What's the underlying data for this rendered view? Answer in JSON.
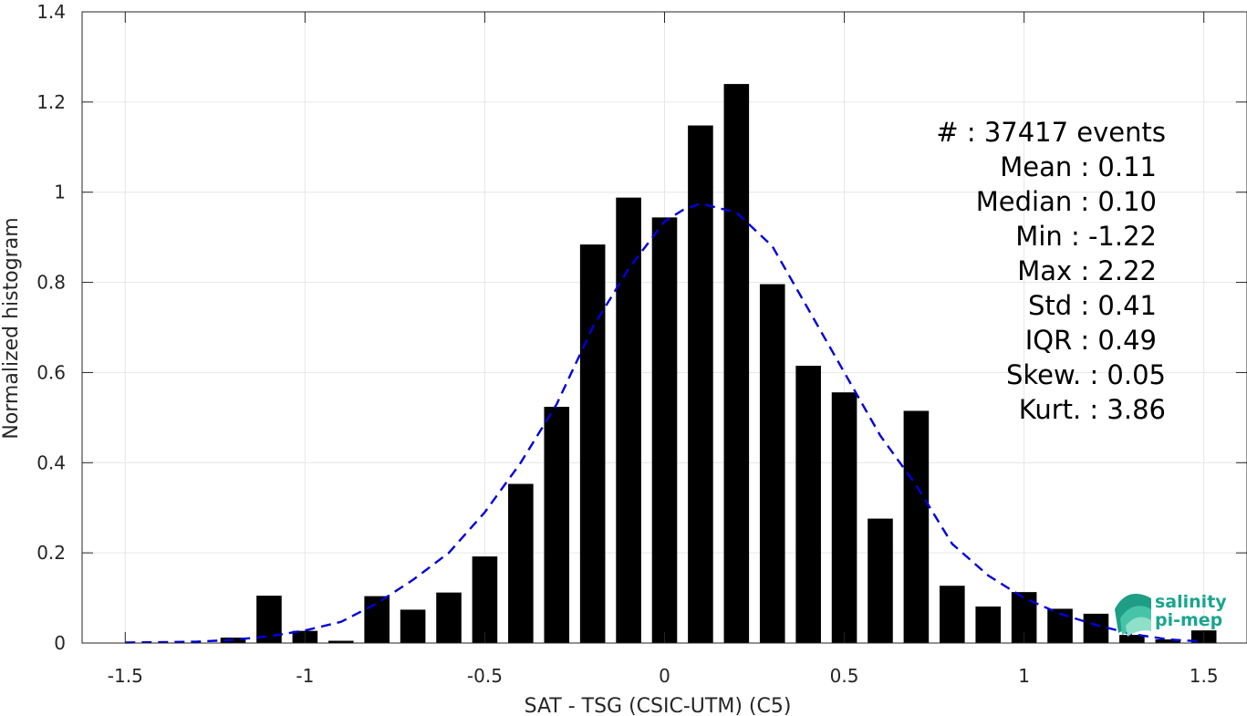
{
  "chart_data": {
    "type": "bar",
    "xlabel": "SAT - TSG (CSIC-UTM) (C5)",
    "ylabel": "Normalized histogram",
    "xlim": [
      -1.62,
      1.62
    ],
    "ylim": [
      0,
      1.4
    ],
    "xticks": [
      -1.5,
      -1,
      -0.5,
      0,
      0.5,
      1,
      1.5
    ],
    "xtick_labels": [
      "-1.5",
      "-1",
      "-0.5",
      "0",
      "0.5",
      "1",
      "1.5"
    ],
    "yticks": [
      0,
      0.2,
      0.4,
      0.6,
      0.8,
      1,
      1.2,
      1.4
    ],
    "ytick_labels": [
      "0",
      "0.2",
      "0.4",
      "0.6",
      "0.8",
      "1",
      "1.2",
      "1.4"
    ],
    "grid": true,
    "bar_color": "#000000",
    "bar_width": 0.07,
    "bars": {
      "x": [
        -1.2,
        -1.1,
        -1.0,
        -0.9,
        -0.8,
        -0.7,
        -0.6,
        -0.5,
        -0.4,
        -0.3,
        -0.2,
        -0.1,
        0.0,
        0.1,
        0.2,
        0.3,
        0.4,
        0.5,
        0.6,
        0.7,
        0.8,
        0.9,
        1.0,
        1.1,
        1.2,
        1.3,
        1.4,
        1.5
      ],
      "values": [
        0.012,
        0.105,
        0.027,
        0.005,
        0.104,
        0.074,
        0.112,
        0.192,
        0.353,
        0.524,
        0.884,
        0.988,
        0.944,
        1.148,
        1.24,
        0.796,
        0.615,
        0.556,
        0.276,
        0.515,
        0.127,
        0.081,
        0.113,
        0.076,
        0.065,
        0.018,
        0.008,
        0.028
      ]
    },
    "fit_curve": {
      "style": "dashed",
      "color": "#0000dd",
      "x": [
        -1.5,
        -1.3,
        -1.2,
        -1.1,
        -1.0,
        -0.9,
        -0.8,
        -0.7,
        -0.6,
        -0.5,
        -0.4,
        -0.3,
        -0.2,
        -0.1,
        0.0,
        0.05,
        0.1,
        0.15,
        0.2,
        0.3,
        0.4,
        0.5,
        0.6,
        0.7,
        0.8,
        0.9,
        1.0,
        1.1,
        1.2,
        1.3,
        1.4,
        1.5
      ],
      "y": [
        0.001,
        0.003,
        0.007,
        0.015,
        0.028,
        0.047,
        0.088,
        0.14,
        0.2,
        0.29,
        0.4,
        0.53,
        0.7,
        0.83,
        0.935,
        0.96,
        0.975,
        0.965,
        0.955,
        0.88,
        0.74,
        0.6,
        0.46,
        0.35,
        0.22,
        0.15,
        0.1,
        0.065,
        0.04,
        0.02,
        0.008,
        0.003
      ]
    },
    "stats": [
      {
        "label": "#  : 37417 events"
      },
      {
        "label": "Mean : 0.11"
      },
      {
        "label": "Median : 0.10"
      },
      {
        "label": "Min : -1.22"
      },
      {
        "label": "Max : 2.22"
      },
      {
        "label": "Std : 0.41"
      },
      {
        "label": "IQR : 0.49"
      },
      {
        "label": "Skew. : 0.05"
      },
      {
        "label": "Kurt. : 3.86"
      }
    ]
  },
  "logo": {
    "line1": "salinity",
    "line2": "pi-mep"
  }
}
